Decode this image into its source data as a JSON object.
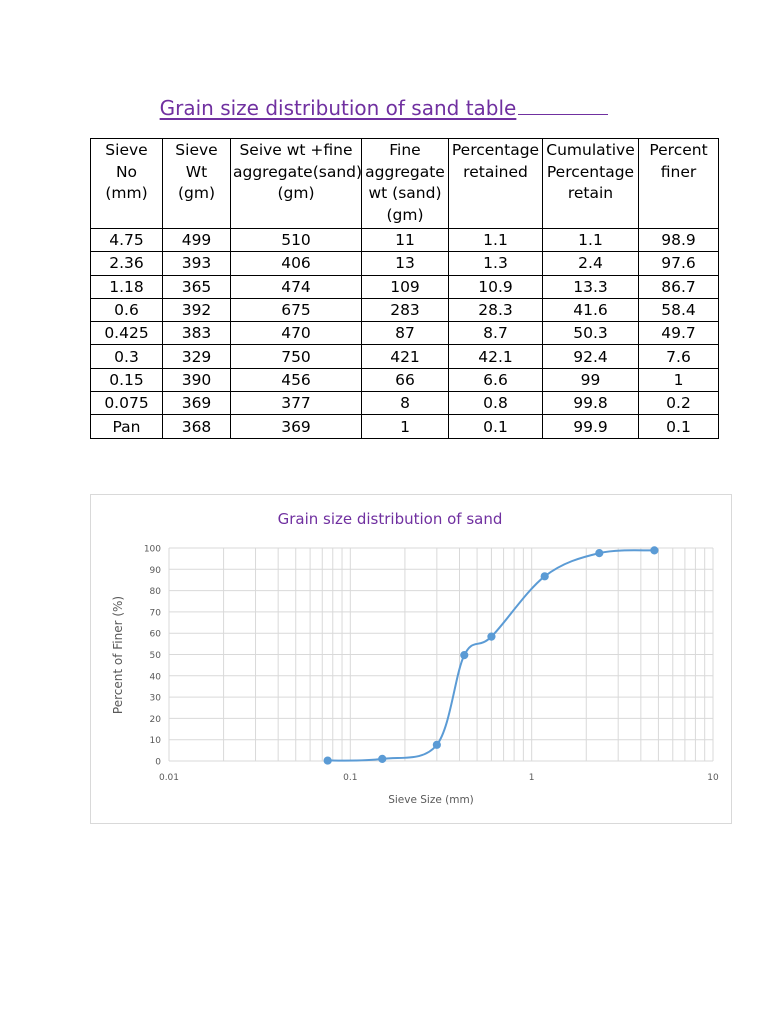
{
  "document": {
    "title": "Grain size distribution of sand  table"
  },
  "table": {
    "headers": [
      [
        "Sieve",
        "No",
        "(mm)"
      ],
      [
        "Sieve",
        "Wt",
        "(gm)"
      ],
      [
        "Seive wt +fine",
        "aggregate(sand)",
        "(gm)"
      ],
      [
        "Fine",
        "aggregate",
        "wt (sand)",
        "(gm)"
      ],
      [
        "Percentage",
        "retained"
      ],
      [
        "Cumulative",
        "Percentage",
        "retain"
      ],
      [
        "Percent",
        "finer"
      ]
    ],
    "rows": [
      [
        "4.75",
        "499",
        "510",
        "11",
        "1.1",
        "1.1",
        "98.9"
      ],
      [
        "2.36",
        "393",
        "406",
        "13",
        "1.3",
        "2.4",
        "97.6"
      ],
      [
        "1.18",
        "365",
        "474",
        "109",
        "10.9",
        "13.3",
        "86.7"
      ],
      [
        "0.6",
        "392",
        "675",
        "283",
        "28.3",
        "41.6",
        "58.4"
      ],
      [
        "0.425",
        "383",
        "470",
        "87",
        "8.7",
        "50.3",
        "49.7"
      ],
      [
        "0.3",
        "329",
        "750",
        "421",
        "42.1",
        "92.4",
        "7.6"
      ],
      [
        "0.15",
        "390",
        "456",
        "66",
        "6.6",
        "99",
        "1"
      ],
      [
        "0.075",
        "369",
        "377",
        "8",
        "0.8",
        "99.8",
        "0.2"
      ],
      [
        "Pan",
        "368",
        "369",
        "1",
        "0.1",
        "99.9",
        "0.1"
      ]
    ]
  },
  "chart_data": {
    "type": "scatter",
    "title": "Grain size distribution of sand",
    "xlabel": "Sieve Size (mm)",
    "ylabel": "Percent of Finer (%)",
    "x_scale": "log",
    "xlim": [
      0.01,
      10
    ],
    "ylim": [
      0,
      100
    ],
    "x_ticks": [
      "0.01",
      "0.1",
      "1",
      "10"
    ],
    "y_ticks": [
      "0",
      "10",
      "20",
      "30",
      "40",
      "50",
      "60",
      "70",
      "80",
      "90",
      "100"
    ],
    "grid": true,
    "line": "smoothed",
    "colors": {
      "series": "#5b9bd5",
      "title": "#7030a0",
      "grid": "#d9d9d9",
      "axis_text": "#595959"
    },
    "series": [
      {
        "x": [
          0.075,
          0.15,
          0.3,
          0.425,
          0.6,
          1.18,
          2.36,
          4.75
        ],
        "y": [
          0.2,
          1,
          7.6,
          49.7,
          58.4,
          86.7,
          97.6,
          98.9
        ]
      }
    ]
  }
}
